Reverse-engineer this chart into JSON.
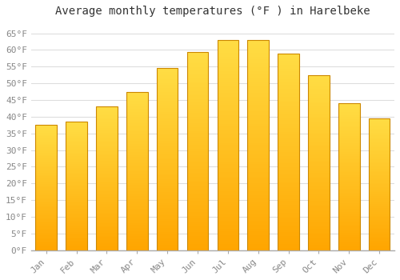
{
  "title": "Average monthly temperatures (°F ) in Harelbeke",
  "months": [
    "Jan",
    "Feb",
    "Mar",
    "Apr",
    "May",
    "Jun",
    "Jul",
    "Aug",
    "Sep",
    "Oct",
    "Nov",
    "Dec"
  ],
  "values": [
    37.5,
    38.5,
    43.0,
    47.5,
    54.5,
    59.5,
    63.0,
    63.0,
    59.0,
    52.5,
    44.0,
    39.5
  ],
  "bar_color_light": "#FFD966",
  "bar_color_dark": "#FFA500",
  "bar_edge_color": "#CC8800",
  "background_color": "#FFFFFF",
  "grid_color": "#DDDDDD",
  "ylim": [
    0,
    68
  ],
  "yticks": [
    0,
    5,
    10,
    15,
    20,
    25,
    30,
    35,
    40,
    45,
    50,
    55,
    60,
    65
  ],
  "title_fontsize": 10,
  "tick_fontsize": 8,
  "font_family": "monospace"
}
